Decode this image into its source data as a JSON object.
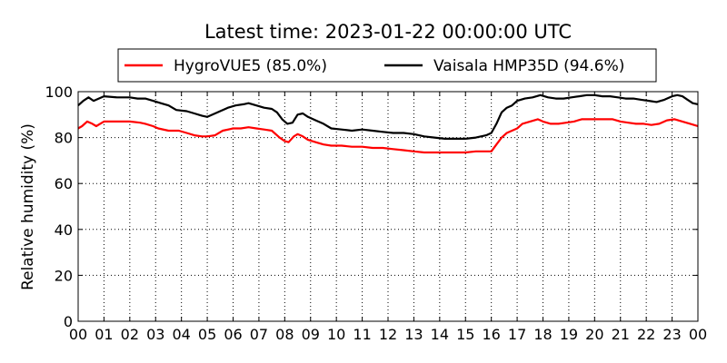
{
  "chart_data": {
    "type": "line",
    "title": "Latest time: 2023-01-22 00:00:00 UTC",
    "xlabel": "",
    "ylabel": "Relative humidity (%)",
    "xlim": [
      0,
      24
    ],
    "ylim": [
      0,
      100
    ],
    "grid": true,
    "legend_position": "top",
    "x_tick_labels": [
      "00",
      "01",
      "02",
      "03",
      "04",
      "05",
      "06",
      "07",
      "08",
      "09",
      "10",
      "11",
      "12",
      "13",
      "14",
      "15",
      "16",
      "17",
      "18",
      "19",
      "20",
      "21",
      "22",
      "23",
      "00"
    ],
    "y_tick_labels": [
      "0",
      "20",
      "40",
      "60",
      "80",
      "100"
    ],
    "series": [
      {
        "name": "HygroVUE5 (85.0%)",
        "color": "#ff0000",
        "x": [
          0,
          0.15,
          0.35,
          0.55,
          0.7,
          0.85,
          1.0,
          1.5,
          2.0,
          2.4,
          2.6,
          2.9,
          3.1,
          3.5,
          3.9,
          4.2,
          4.5,
          4.8,
          5.0,
          5.3,
          5.6,
          6.0,
          6.3,
          6.6,
          6.9,
          7.2,
          7.5,
          7.8,
          8.0,
          8.15,
          8.35,
          8.5,
          8.7,
          8.9,
          9.2,
          9.5,
          9.8,
          10.2,
          10.6,
          11.0,
          11.4,
          11.8,
          12.2,
          12.6,
          13.0,
          13.4,
          13.8,
          14.2,
          14.6,
          15.0,
          15.4,
          15.8,
          16.0,
          16.2,
          16.4,
          16.6,
          16.8,
          17.0,
          17.2,
          17.5,
          17.8,
          18.0,
          18.3,
          18.6,
          18.9,
          19.2,
          19.5,
          19.8,
          20.1,
          20.4,
          20.7,
          21.0,
          21.3,
          21.6,
          21.9,
          22.2,
          22.5,
          22.8,
          23.1,
          23.4,
          23.7,
          24.0
        ],
        "y": [
          84,
          85,
          87,
          86,
          85,
          86,
          87,
          87,
          87,
          86.5,
          86,
          85,
          84,
          83,
          83,
          82,
          81,
          80.5,
          80.5,
          81,
          83,
          84,
          84,
          84.5,
          84,
          83.5,
          83,
          80,
          78.5,
          78,
          80.5,
          81.5,
          80.5,
          79,
          78,
          77,
          76.5,
          76.5,
          76,
          76,
          75.5,
          75.5,
          75,
          74.5,
          74,
          73.5,
          73.5,
          73.5,
          73.5,
          73.5,
          74,
          74,
          74,
          77,
          80,
          82,
          83,
          84,
          86,
          87,
          88,
          87,
          86,
          86,
          86.5,
          87,
          88,
          88,
          88,
          88,
          88,
          87,
          86.5,
          86,
          86,
          85.5,
          86,
          87.5,
          88,
          87,
          86,
          85
        ]
      },
      {
        "name": "Vaisala HMP35D (94.6%)",
        "color": "#000000",
        "x": [
          0,
          0.2,
          0.4,
          0.6,
          0.8,
          1.0,
          1.5,
          2.0,
          2.3,
          2.6,
          2.9,
          3.2,
          3.5,
          3.8,
          4.2,
          4.5,
          4.8,
          5.0,
          5.2,
          5.5,
          5.8,
          6.1,
          6.4,
          6.6,
          6.9,
          7.2,
          7.5,
          7.7,
          7.9,
          8.1,
          8.3,
          8.5,
          8.7,
          8.9,
          9.2,
          9.5,
          9.8,
          10.2,
          10.6,
          11.0,
          11.4,
          11.8,
          12.2,
          12.6,
          13.0,
          13.4,
          13.8,
          14.2,
          14.6,
          15.0,
          15.4,
          15.8,
          16.0,
          16.2,
          16.4,
          16.6,
          16.8,
          17.0,
          17.3,
          17.6,
          17.9,
          18.2,
          18.5,
          18.8,
          19.1,
          19.4,
          19.7,
          20.0,
          20.3,
          20.6,
          20.9,
          21.2,
          21.5,
          21.8,
          22.1,
          22.4,
          22.7,
          23.0,
          23.2,
          23.4,
          23.6,
          23.8,
          24.0
        ],
        "y": [
          94,
          96,
          97.5,
          96,
          97,
          98,
          97.5,
          97.5,
          97,
          97,
          96,
          95,
          94,
          92,
          91.5,
          90.5,
          89.5,
          89,
          90,
          91.5,
          93,
          94,
          94.5,
          95,
          94,
          93,
          92.5,
          91,
          88,
          86,
          86.5,
          90,
          90.5,
          89,
          87.5,
          86,
          84,
          83.5,
          83,
          83.5,
          83,
          82.5,
          82,
          82,
          81.5,
          80.5,
          80,
          79.5,
          79.5,
          79.5,
          80,
          81,
          82,
          86,
          91,
          93,
          94,
          96,
          97,
          97.5,
          98.5,
          97.5,
          97,
          97,
          97.5,
          98,
          98.5,
          98.5,
          98,
          98,
          97.5,
          97,
          97,
          96.5,
          96,
          95.5,
          96.5,
          98,
          98.5,
          98,
          96.5,
          95,
          94.5
        ]
      }
    ]
  }
}
